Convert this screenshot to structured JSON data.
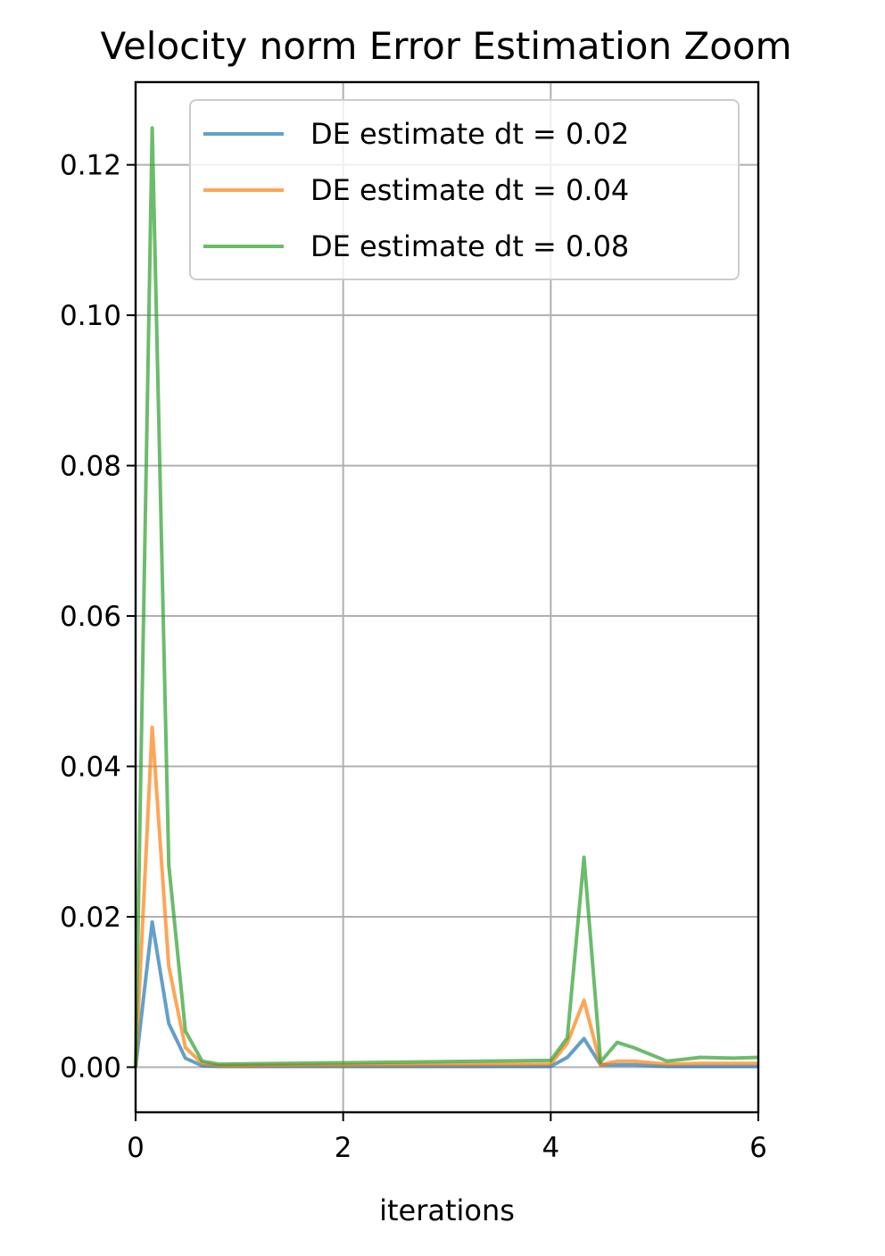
{
  "chart_data": {
    "type": "line",
    "title": "Velocity norm Error Estimation Zoom",
    "xlabel": "iterations",
    "ylabel": "",
    "xlim": [
      0,
      6
    ],
    "ylim": [
      -0.006,
      0.131
    ],
    "xticks": [
      0,
      2,
      4,
      6
    ],
    "xtick_labels": [
      "0",
      "2",
      "4",
      "6"
    ],
    "yticks": [
      0.0,
      0.02,
      0.04,
      0.06,
      0.08,
      0.1,
      0.12
    ],
    "ytick_labels": [
      "0.00",
      "0.02",
      "0.04",
      "0.06",
      "0.08",
      "0.10",
      "0.12"
    ],
    "grid": true,
    "legend_position": "top-right",
    "series": [
      {
        "name": "DE estimate dt = 0.02",
        "color": "#1f77b4",
        "x": [
          0,
          0.16,
          0.32,
          0.48,
          0.64,
          0.8,
          4.0,
          4.16,
          4.32,
          4.48,
          4.64,
          4.8,
          5.12,
          5.44,
          5.76,
          6.0
        ],
        "y": [
          0.0,
          0.0193,
          0.0058,
          0.0012,
          0.0002,
          0.0001,
          0.0001,
          0.0013,
          0.0038,
          0.0003,
          0.0003,
          0.0003,
          0.0001,
          0.0001,
          0.0001,
          0.0001
        ]
      },
      {
        "name": "DE estimate dt = 0.04",
        "color": "#ff7f0e",
        "x": [
          0,
          0.16,
          0.32,
          0.48,
          0.64,
          0.8,
          4.0,
          4.16,
          4.32,
          4.48,
          4.64,
          4.8,
          5.12,
          5.44,
          5.76,
          6.0
        ],
        "y": [
          0.0,
          0.0452,
          0.0134,
          0.0026,
          0.0005,
          0.0002,
          0.0004,
          0.0032,
          0.0089,
          0.0003,
          0.0008,
          0.0008,
          0.0004,
          0.0005,
          0.0005,
          0.0005
        ]
      },
      {
        "name": "DE estimate dt = 0.08",
        "color": "#2ca02c",
        "x": [
          0,
          0.16,
          0.32,
          0.48,
          0.64,
          0.8,
          4.0,
          4.16,
          4.32,
          4.48,
          4.64,
          4.8,
          5.12,
          5.44,
          5.76,
          6.0
        ],
        "y": [
          0.0,
          0.1249,
          0.0269,
          0.0048,
          0.0008,
          0.0004,
          0.0009,
          0.0039,
          0.0279,
          0.0007,
          0.0033,
          0.0026,
          0.0008,
          0.0013,
          0.0012,
          0.0013
        ]
      }
    ]
  }
}
